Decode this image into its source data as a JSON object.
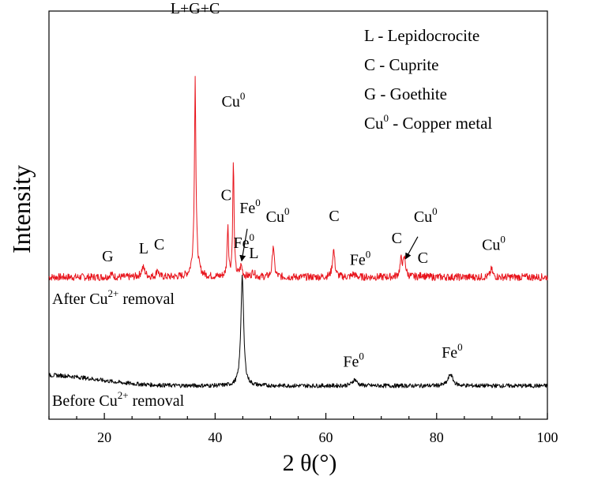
{
  "chart_data": {
    "type": "line",
    "title": "",
    "xlabel": "2 θ(°)",
    "ylabel": "Intensity",
    "xlim": [
      10,
      100
    ],
    "x_ticks": [
      20,
      40,
      60,
      80,
      100
    ],
    "grid": false,
    "legend_position": "top-right",
    "legend": [
      {
        "symbol": "L",
        "text": "Lepidocrocite"
      },
      {
        "symbol": "C",
        "text": "Cuprite"
      },
      {
        "symbol": "G",
        "text": "Goethite"
      },
      {
        "symbol": "Cu",
        "sup": "0",
        "text": "Copper metal"
      }
    ],
    "series": [
      {
        "label_base": "After Cu",
        "label_sup": "2+",
        "label_rest": " removal",
        "color": "#e8141c",
        "baseline": 0.3,
        "noise": 0.7,
        "peaks": [
          {
            "x": 21.2,
            "h": 0.6,
            "w": 0.3
          },
          {
            "x": 27.0,
            "h": 1.8,
            "w": 0.4
          },
          {
            "x": 29.6,
            "h": 1.6,
            "w": 0.2
          },
          {
            "x": 36.4,
            "h": 8.0,
            "w": 0.4
          },
          {
            "x": 36.4,
            "h": 30.8,
            "w": 0.13
          },
          {
            "x": 42.3,
            "h": 9.8,
            "w": 0.15
          },
          {
            "x": 43.3,
            "h": 22.0,
            "w": 0.14
          },
          {
            "x": 44.7,
            "h": 2.0,
            "w": 0.25
          },
          {
            "x": 46.9,
            "h": 1.0,
            "w": 0.3
          },
          {
            "x": 50.5,
            "h": 6.2,
            "w": 0.2
          },
          {
            "x": 61.4,
            "h": 5.2,
            "w": 0.25
          },
          {
            "x": 65.0,
            "h": 0.6,
            "w": 0.3
          },
          {
            "x": 73.6,
            "h": 3.2,
            "w": 0.25
          },
          {
            "x": 74.2,
            "h": 3.3,
            "w": 0.25
          },
          {
            "x": 77.4,
            "h": 0.5,
            "w": 0.3
          },
          {
            "x": 89.9,
            "h": 1.5,
            "w": 0.25
          }
        ]
      },
      {
        "label_base": "Before Cu",
        "label_sup": "2+",
        "label_rest": " removal",
        "color": "#000000",
        "baseline": 0.2,
        "noise": 0.4,
        "hump": {
          "x": 10,
          "h": 2.0,
          "w": 12
        },
        "peaks": [
          {
            "x": 44.9,
            "h": 21.0,
            "w": 0.3
          },
          {
            "x": 65.2,
            "h": 1.2,
            "w": 0.5
          },
          {
            "x": 82.5,
            "h": 2.2,
            "w": 0.5
          }
        ]
      }
    ],
    "annotations": [
      {
        "text": "G",
        "x": 20.6,
        "series": 0,
        "y": 3.3
      },
      {
        "text": "L",
        "x": 27.1,
        "series": 0,
        "y": 4.8
      },
      {
        "text": "C",
        "x": 29.9,
        "series": 0,
        "y": 5.6
      },
      {
        "text": "L+G+C",
        "x": 36.4,
        "series": 0,
        "y": 50.5
      },
      {
        "text": "Cu",
        "sup": "0",
        "x": 43.3,
        "series": 0,
        "y": 32.8
      },
      {
        "text": "C",
        "x": 42.0,
        "series": 0,
        "y": 15.0
      },
      {
        "text": "Fe",
        "sup": "0",
        "x": 46.3,
        "series": 0,
        "y": 12.5
      },
      {
        "text": "L",
        "x": 47.0,
        "series": 0,
        "y": 3.9
      },
      {
        "text": "Cu",
        "sup": "0",
        "x": 51.3,
        "series": 0,
        "y": 10.8
      },
      {
        "text": "C",
        "x": 61.5,
        "series": 0,
        "y": 11.0
      },
      {
        "text": "Fe",
        "sup": "0",
        "x": 66.2,
        "series": 0,
        "y": 2.6
      },
      {
        "text": "C",
        "x": 72.8,
        "series": 0,
        "y": 6.8
      },
      {
        "text": "Cu",
        "sup": "0",
        "x": 78.0,
        "series": 0,
        "y": 10.8
      },
      {
        "text": "C",
        "x": 77.5,
        "series": 0,
        "y": 3.0
      },
      {
        "text": "Cu",
        "sup": "0",
        "x": 90.3,
        "series": 0,
        "y": 5.5
      },
      {
        "text": "Fe",
        "sup": "0",
        "x": 45.2,
        "series": 1,
        "y": 26.5
      },
      {
        "text": "Fe",
        "sup": "0",
        "x": 65.0,
        "series": 1,
        "y": 3.8
      },
      {
        "text": "Fe",
        "sup": "0",
        "x": 82.8,
        "series": 1,
        "y": 5.6
      }
    ],
    "arrows": [
      {
        "series": 0,
        "from": [
          45.8,
          9.5
        ],
        "to": [
          44.8,
          3.4
        ]
      },
      {
        "series": 0,
        "from": [
          76.6,
          8.0
        ],
        "to": [
          74.4,
          3.8
        ]
      }
    ]
  }
}
